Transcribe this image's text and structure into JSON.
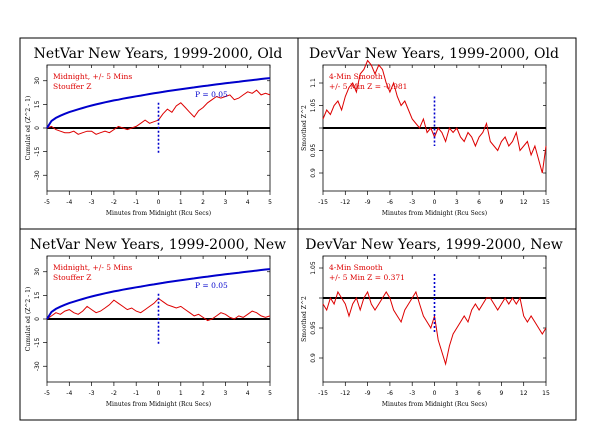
{
  "chart_data": [
    {
      "type": "line",
      "title": "NetVar New Years, 1999-2000, Old",
      "annotation_lines": [
        "Midnight, +/- 5 Mins",
        "Stouffer Z"
      ],
      "p_label": "P = 0.05",
      "xlabel": "Minutes from Midnight (Rcu Secs)",
      "ylabel": "Cumulat ed (Z^2 - 1)",
      "xlim": [
        -5,
        5
      ],
      "ylim": [
        -40,
        40
      ],
      "xticks": [
        -5,
        -4,
        -3,
        -2,
        -1,
        0,
        1,
        2,
        3,
        4,
        5
      ],
      "xtick_labels": [
        "-5",
        "-4",
        "-3",
        "-2",
        "-1",
        "0",
        "1",
        "2",
        "3",
        "4",
        "5"
      ],
      "yticks": [
        -30,
        -15,
        0,
        15,
        30
      ],
      "ytick_labels": [
        "-30",
        "-15",
        "0",
        "15",
        "30"
      ],
      "baseline": 0,
      "marker_x": 0,
      "marker_range": [
        -16,
        16
      ],
      "series": [
        {
          "color": "#dd0000",
          "x": [
            -5,
            -4.8,
            -4.6,
            -4.4,
            -4.2,
            -4,
            -3.8,
            -3.6,
            -3.4,
            -3.2,
            -3,
            -2.8,
            -2.6,
            -2.4,
            -2.2,
            -2,
            -1.8,
            -1.6,
            -1.4,
            -1.2,
            -1,
            -0.8,
            -0.6,
            -0.4,
            -0.2,
            0,
            0.2,
            0.4,
            0.6,
            0.8,
            1,
            1.2,
            1.4,
            1.6,
            1.8,
            2,
            2.2,
            2.4,
            2.6,
            2.8,
            3,
            3.2,
            3.4,
            3.6,
            3.8,
            4,
            4.2,
            4.4,
            4.6,
            4.8,
            5
          ],
          "values": [
            0,
            1,
            -1,
            -2,
            -3,
            -3,
            -2,
            -4,
            -3,
            -2,
            -2,
            -4,
            -3,
            -2,
            -3,
            -1,
            1,
            0,
            -1,
            0,
            1,
            3,
            5,
            3,
            4,
            5,
            9,
            12,
            10,
            14,
            16,
            13,
            10,
            7,
            11,
            13,
            16,
            18,
            20,
            19,
            20,
            21,
            18,
            19,
            21,
            23,
            22,
            24,
            21,
            22,
            21
          ]
        },
        {
          "color": "#0000cc",
          "x": [
            -5,
            -4.8,
            -4.6,
            -4.4,
            -4.2,
            -4,
            -3.8,
            -3.6,
            -3.4,
            -3.2,
            -3,
            -2.8,
            -2.6,
            -2.4,
            -2.2,
            -2,
            -1.8,
            -1.6,
            -1.4,
            -1.2,
            -1,
            -0.8,
            -0.6,
            -0.4,
            -0.2,
            0,
            0.2,
            0.4,
            0.6,
            0.8,
            1,
            1.2,
            1.4,
            1.6,
            1.8,
            2,
            2.2,
            2.4,
            2.6,
            2.8,
            3,
            3.2,
            3.4,
            3.6,
            3.8,
            4,
            4.2,
            4.4,
            4.6,
            4.8,
            5
          ],
          "values": [
            0,
            4.5,
            6.4,
            7.8,
            9,
            10.1,
            11,
            11.9,
            12.7,
            13.5,
            14.3,
            15,
            15.6,
            16.3,
            16.9,
            17.5,
            18,
            18.6,
            19.1,
            19.6,
            20.1,
            20.6,
            21.1,
            21.6,
            22,
            22.5,
            22.9,
            23.4,
            23.8,
            24.2,
            24.6,
            25,
            25.4,
            25.8,
            26.2,
            26.6,
            26.9,
            27.3,
            27.7,
            28,
            28.4,
            28.7,
            29.1,
            29.4,
            29.8,
            30.1,
            30.4,
            30.7,
            31.1,
            31.4,
            31.7
          ]
        }
      ]
    },
    {
      "type": "line",
      "title": "DevVar New Years, 1999-2000, Old",
      "annotation_lines": [
        "4-Min Smooth",
        "+/- 5 Min Z = -0.981"
      ],
      "xlabel": "Minutes from Midnight (Rcu Secs)",
      "ylabel": "Smoothed Z^2",
      "xlim": [
        -15,
        15
      ],
      "ylim": [
        0.86,
        1.14
      ],
      "xticks": [
        -15,
        -12,
        -9,
        -6,
        -3,
        0,
        3,
        6,
        9,
        12,
        15
      ],
      "xtick_labels": [
        "-15",
        "-12",
        "-9",
        "-6",
        "-3",
        "0",
        "3",
        "6",
        "9",
        "12",
        "15"
      ],
      "yticks": [
        0.9,
        0.95,
        1.0,
        1.05,
        1.1
      ],
      "ytick_labels": [
        "0.9",
        "0.95",
        "",
        "1.05",
        "1.1"
      ],
      "baseline": 1.0,
      "marker_x": 0,
      "marker_range": [
        0.96,
        1.07
      ],
      "series": [
        {
          "color": "#dd0000",
          "x": [
            -15,
            -14.5,
            -14,
            -13.5,
            -13,
            -12.5,
            -12,
            -11.5,
            -11,
            -10.5,
            -10,
            -9.5,
            -9,
            -8.5,
            -8,
            -7.5,
            -7,
            -6.5,
            -6,
            -5.5,
            -5,
            -4.5,
            -4,
            -3.5,
            -3,
            -2.5,
            -2,
            -1.5,
            -1,
            -0.5,
            0,
            0.5,
            1,
            1.5,
            2,
            2.5,
            3,
            3.5,
            4,
            4.5,
            5,
            5.5,
            6,
            6.5,
            7,
            7.5,
            8,
            8.5,
            9,
            9.5,
            10,
            10.5,
            11,
            11.5,
            12,
            12.5,
            13,
            13.5,
            14,
            14.5,
            15
          ],
          "values": [
            1.02,
            1.04,
            1.03,
            1.05,
            1.06,
            1.04,
            1.07,
            1.09,
            1.1,
            1.08,
            1.12,
            1.13,
            1.15,
            1.14,
            1.12,
            1.14,
            1.13,
            1.1,
            1.08,
            1.1,
            1.07,
            1.05,
            1.06,
            1.04,
            1.02,
            1.01,
            1.0,
            1.02,
            0.99,
            1.0,
            0.98,
            1.0,
            0.99,
            0.97,
            1.0,
            0.99,
            1.0,
            0.98,
            0.97,
            0.99,
            0.98,
            0.96,
            0.98,
            0.99,
            1.01,
            0.97,
            0.96,
            0.95,
            0.97,
            0.98,
            0.96,
            0.97,
            0.99,
            0.95,
            0.96,
            0.97,
            0.94,
            0.96,
            0.93,
            0.9,
            0.96
          ]
        }
      ]
    },
    {
      "type": "line",
      "title": "NetVar New Years, 1999-2000, New",
      "annotation_lines": [
        "Midnight, +/- 5 Mins",
        "Stouffer Z"
      ],
      "p_label": "P = 0.05",
      "xlabel": "Minutes from Midnight (Rcu Secs)",
      "ylabel": "Cumulat ed (Z^2 - 1)",
      "xlim": [
        -5,
        5
      ],
      "ylim": [
        -40,
        40
      ],
      "xticks": [
        -5,
        -4,
        -3,
        -2,
        -1,
        0,
        1,
        2,
        3,
        4,
        5
      ],
      "xtick_labels": [
        "-5",
        "-4",
        "-3",
        "-2",
        "-1",
        "0",
        "1",
        "2",
        "3",
        "4",
        "5"
      ],
      "yticks": [
        -30,
        -15,
        0,
        15,
        30
      ],
      "ytick_labels": [
        "-30",
        "-15",
        "0",
        "15",
        "30"
      ],
      "baseline": 0,
      "marker_x": 0,
      "marker_range": [
        -16,
        16
      ],
      "series": [
        {
          "color": "#dd0000",
          "x": [
            -5,
            -4.8,
            -4.6,
            -4.4,
            -4.2,
            -4,
            -3.8,
            -3.6,
            -3.4,
            -3.2,
            -3,
            -2.8,
            -2.6,
            -2.4,
            -2.2,
            -2,
            -1.8,
            -1.6,
            -1.4,
            -1.2,
            -1,
            -0.8,
            -0.6,
            -0.4,
            -0.2,
            0,
            0.2,
            0.4,
            0.6,
            0.8,
            1,
            1.2,
            1.4,
            1.6,
            1.8,
            2,
            2.2,
            2.4,
            2.6,
            2.8,
            3,
            3.2,
            3.4,
            3.6,
            3.8,
            4,
            4.2,
            4.4,
            4.6,
            4.8,
            5
          ],
          "values": [
            0,
            2,
            4,
            3,
            5,
            6,
            4,
            3,
            5,
            8,
            6,
            4,
            5,
            7,
            9,
            12,
            10,
            8,
            6,
            7,
            5,
            4,
            6,
            8,
            10,
            13,
            11,
            9,
            8,
            7,
            8,
            6,
            4,
            2,
            3,
            1,
            -1,
            0,
            2,
            4,
            3,
            1,
            0,
            2,
            1,
            3,
            5,
            4,
            2,
            1,
            2
          ]
        },
        {
          "color": "#0000cc",
          "x": [
            -5,
            -4.8,
            -4.6,
            -4.4,
            -4.2,
            -4,
            -3.8,
            -3.6,
            -3.4,
            -3.2,
            -3,
            -2.8,
            -2.6,
            -2.4,
            -2.2,
            -2,
            -1.8,
            -1.6,
            -1.4,
            -1.2,
            -1,
            -0.8,
            -0.6,
            -0.4,
            -0.2,
            0,
            0.2,
            0.4,
            0.6,
            0.8,
            1,
            1.2,
            1.4,
            1.6,
            1.8,
            2,
            2.2,
            2.4,
            2.6,
            2.8,
            3,
            3.2,
            3.4,
            3.6,
            3.8,
            4,
            4.2,
            4.4,
            4.6,
            4.8,
            5
          ],
          "values": [
            0,
            4.5,
            6.4,
            7.8,
            9,
            10.1,
            11,
            11.9,
            12.7,
            13.5,
            14.3,
            15,
            15.6,
            16.3,
            16.9,
            17.5,
            18,
            18.6,
            19.1,
            19.6,
            20.1,
            20.6,
            21.1,
            21.6,
            22,
            22.5,
            22.9,
            23.4,
            23.8,
            24.2,
            24.6,
            25,
            25.4,
            25.8,
            26.2,
            26.6,
            26.9,
            27.3,
            27.7,
            28,
            28.4,
            28.7,
            29.1,
            29.4,
            29.8,
            30.1,
            30.4,
            30.7,
            31.1,
            31.4,
            31.7
          ]
        }
      ]
    },
    {
      "type": "line",
      "title": "DevVar New Years, 1999-2000, New",
      "annotation_lines": [
        "4-Min Smooth",
        "+/- 5 Min Z = 0.371"
      ],
      "xlabel": "Minutes from Midnight (Rcu Secs)",
      "ylabel": "Smoothed Z^2",
      "xlim": [
        -15,
        15
      ],
      "ylim": [
        0.86,
        1.07
      ],
      "xticks": [
        -15,
        -12,
        -9,
        -6,
        -3,
        0,
        3,
        6,
        9,
        12,
        15
      ],
      "xtick_labels": [
        "-15",
        "-12",
        "-9",
        "-6",
        "-3",
        "0",
        "3",
        "6",
        "9",
        "12",
        "15"
      ],
      "yticks": [
        0.9,
        0.95,
        1.0,
        1.05
      ],
      "ytick_labels": [
        "0.9",
        "0.95",
        "",
        "1.05"
      ],
      "baseline": 1.0,
      "marker_x": 0,
      "marker_range": [
        0.94,
        1.04
      ],
      "series": [
        {
          "color": "#dd0000",
          "x": [
            -15,
            -14.5,
            -14,
            -13.5,
            -13,
            -12.5,
            -12,
            -11.5,
            -11,
            -10.5,
            -10,
            -9.5,
            -9,
            -8.5,
            -8,
            -7.5,
            -7,
            -6.5,
            -6,
            -5.5,
            -5,
            -4.5,
            -4,
            -3.5,
            -3,
            -2.5,
            -2,
            -1.5,
            -1,
            -0.5,
            0,
            0.5,
            1,
            1.5,
            2,
            2.5,
            3,
            3.5,
            4,
            4.5,
            5,
            5.5,
            6,
            6.5,
            7,
            7.5,
            8,
            8.5,
            9,
            9.5,
            10,
            10.5,
            11,
            11.5,
            12,
            12.5,
            13,
            13.5,
            14,
            14.5,
            15
          ],
          "values": [
            0.99,
            0.98,
            1.0,
            0.99,
            1.01,
            1.0,
            0.99,
            0.97,
            0.99,
            1.0,
            0.98,
            1.0,
            1.01,
            0.99,
            0.98,
            0.99,
            1.0,
            1.01,
            1.0,
            0.98,
            0.97,
            0.96,
            0.98,
            0.99,
            1.0,
            1.01,
            0.99,
            0.97,
            0.96,
            0.95,
            0.97,
            0.93,
            0.91,
            0.89,
            0.92,
            0.94,
            0.95,
            0.96,
            0.97,
            0.96,
            0.98,
            0.99,
            0.98,
            0.99,
            1.0,
            1.0,
            0.99,
            0.98,
            0.99,
            1.0,
            0.99,
            1.0,
            0.99,
            1.0,
            0.97,
            0.96,
            0.97,
            0.96,
            0.95,
            0.94,
            0.95
          ]
        }
      ]
    }
  ]
}
